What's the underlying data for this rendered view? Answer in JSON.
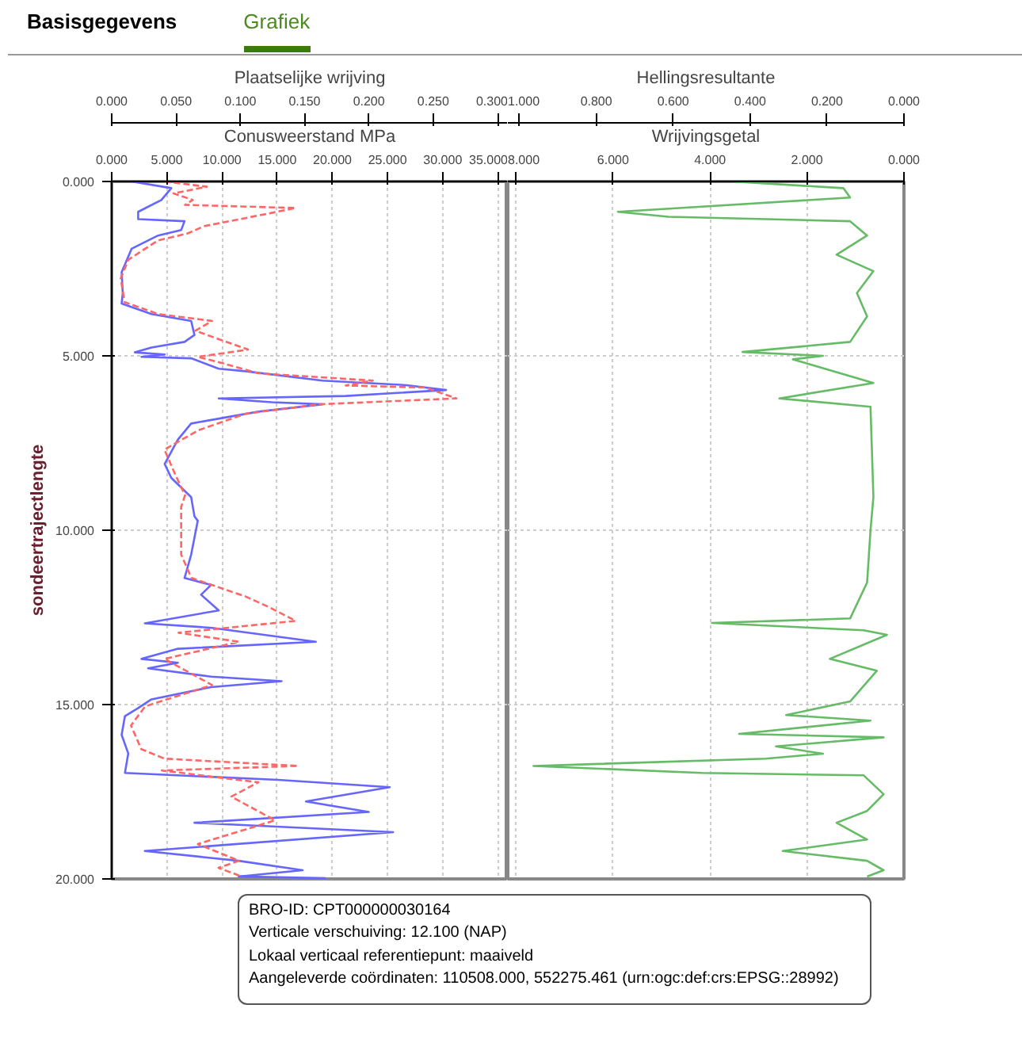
{
  "chart_data": [
    {
      "type": "line",
      "xlabel": "Conusweerstand MPa",
      "x2label": "Plaatselijke wrijving",
      "ylabel": "sondeertrajectlengte",
      "annotations": [
        "Basisgegevens",
        "Grafiek",
        "BRO-ID: CPT000000030164",
        "Verticale verschuiving: 12.100 (NAP)",
        "Lokaal verticaal referentiepunt: maaiveld",
        "Aangeleverde coördinaten: 110508.000, 552275.461 (urn:ogc:def:crs:EPSG::28992)"
      ],
      "xlim": [
        0,
        35.9
      ],
      "xticks": [
        {
          "value": 0,
          "label": "0.000"
        },
        {
          "value": 5,
          "label": "5.000"
        },
        {
          "value": 10,
          "label": "10.000"
        },
        {
          "value": 15,
          "label": "15.000"
        },
        {
          "value": 20,
          "label": "20.000"
        },
        {
          "value": 25,
          "label": "25.000"
        },
        {
          "value": 30,
          "label": "30.000"
        },
        {
          "value": 35,
          "label": "35.000"
        }
      ],
      "x2lim": [
        0,
        0.308
      ],
      "x2ticks": [
        {
          "value": 0,
          "label": "0.000"
        },
        {
          "value": 0.05,
          "label": "0.050"
        },
        {
          "value": 0.1,
          "label": "0.100"
        },
        {
          "value": 0.15,
          "label": "0.150"
        },
        {
          "value": 0.2,
          "label": "0.200"
        },
        {
          "value": 0.25,
          "label": "0.250"
        },
        {
          "value": 0.3,
          "label": "0.300"
        }
      ],
      "ylim": [
        20,
        0
      ],
      "yticks": [
        {
          "value": 0,
          "label": "0.000"
        },
        {
          "value": 5,
          "label": "5.000"
        },
        {
          "value": 10,
          "label": "10.000"
        },
        {
          "value": 15,
          "label": "15.000"
        },
        {
          "value": 20,
          "label": "20.000"
        }
      ],
      "grid": true,
      "series": [
        {
          "color": "#6666ff",
          "line_style": "solid",
          "x": [
            1.8,
            5.4,
            4.5,
            2.4,
            2.4,
            6.6,
            6.3,
            4.2,
            1.8,
            0.9,
            1.0,
            0.9,
            3.6,
            7.2,
            7.5,
            6.6,
            3.6,
            2.1,
            4.8,
            2.7,
            7.2,
            9.7,
            12.1,
            19.1,
            26.7,
            30.3,
            21.2,
            9.7,
            14.5,
            19.1,
            13.3,
            7.2,
            6.0,
            4.8,
            5.4,
            7.2,
            7.5,
            7.8,
            7.2,
            6.6,
            9.0,
            8.1,
            9.7,
            3.0,
            9.1,
            18.5,
            6.0,
            2.7,
            6.0,
            3.3,
            9.0,
            15.4,
            9.0,
            3.6,
            2.4,
            1.2,
            0.9,
            1.5,
            1.2,
            15.1,
            25.2,
            17.6,
            23.3,
            7.5,
            25.5,
            3.0,
            11.5,
            17.3,
            11.5,
            19.4
          ],
          "values": [
            0.0,
            0.19,
            0.53,
            0.87,
            1.08,
            1.14,
            1.39,
            1.55,
            1.93,
            2.6,
            3.2,
            3.5,
            3.8,
            4.0,
            4.4,
            4.6,
            4.76,
            4.9,
            4.96,
            5.03,
            5.07,
            5.37,
            5.44,
            5.71,
            5.84,
            5.98,
            6.15,
            6.22,
            6.33,
            6.39,
            6.6,
            6.94,
            7.4,
            8.1,
            8.5,
            9.05,
            9.6,
            9.73,
            10.7,
            11.37,
            11.57,
            11.85,
            12.3,
            12.67,
            12.8,
            13.2,
            13.4,
            13.69,
            13.8,
            13.96,
            14.2,
            14.33,
            14.5,
            14.85,
            15.1,
            15.33,
            15.87,
            16.4,
            16.96,
            17.16,
            17.37,
            17.78,
            18.08,
            18.39,
            18.66,
            19.2,
            19.48,
            19.75,
            19.93,
            19.98
          ]
        },
        {
          "axis": "x2",
          "color": "#ff6666",
          "line_style": "dashed",
          "x": [
            0.041,
            0.074,
            0.048,
            0.063,
            0.057,
            0.143,
            0.119,
            0.072,
            0.059,
            0.036,
            0.013,
            0.007,
            0.01,
            0.036,
            0.078,
            0.065,
            0.106,
            0.067,
            0.088,
            0.114,
            0.203,
            0.182,
            0.244,
            0.268,
            0.161,
            0.104,
            0.067,
            0.041,
            0.049,
            0.057,
            0.054,
            0.054,
            0.062,
            0.104,
            0.122,
            0.143,
            0.052,
            0.099,
            0.041,
            0.078,
            0.026,
            0.015,
            0.023,
            0.041,
            0.145,
            0.039,
            0.114,
            0.093,
            0.127,
            0.067,
            0.099,
            0.083,
            0.101
          ],
          "values": [
            0.0,
            0.15,
            0.34,
            0.53,
            0.67,
            0.76,
            0.94,
            1.28,
            1.49,
            1.69,
            2.24,
            2.78,
            3.46,
            3.8,
            4.0,
            4.28,
            4.82,
            5.03,
            5.23,
            5.5,
            5.71,
            5.85,
            5.91,
            6.22,
            6.39,
            6.66,
            7.14,
            7.69,
            8.37,
            9.0,
            9.33,
            10.7,
            11.37,
            11.9,
            12.2,
            12.6,
            12.94,
            13.2,
            13.69,
            14.44,
            15.05,
            15.6,
            16.28,
            16.55,
            16.76,
            16.89,
            17.23,
            17.64,
            18.32,
            19.0,
            19.48,
            19.68,
            19.93
          ]
        }
      ]
    },
    {
      "type": "line",
      "xlabel": "Wrijvingsgetal",
      "x2label": "Hellingsresultante",
      "xlim": [
        8.17,
        0
      ],
      "xticks": [
        {
          "value": 8,
          "label": "8.000"
        },
        {
          "value": 6,
          "label": "6.000"
        },
        {
          "value": 4,
          "label": "4.000"
        },
        {
          "value": 2,
          "label": "2.000"
        },
        {
          "value": 0,
          "label": "0.000"
        }
      ],
      "x2lim": [
        1.03,
        0
      ],
      "x2ticks": [
        {
          "value": 1,
          "label": "1.000"
        },
        {
          "value": 0.8,
          "label": "0.800"
        },
        {
          "value": 0.6,
          "label": "0.600"
        },
        {
          "value": 0.4,
          "label": "0.400"
        },
        {
          "value": 0.2,
          "label": "0.200"
        },
        {
          "value": 0,
          "label": "0.000"
        }
      ],
      "ylim": [
        20,
        0
      ],
      "tick_labels": "x",
      "grid": true,
      "series": [
        {
          "color": "#66bb66",
          "line_style": "solid",
          "x": [
            3.54,
            1.25,
            1.11,
            5.9,
            4.86,
            1.11,
            0.76,
            1.39,
            0.63,
            0.97,
            0.76,
            1.11,
            3.33,
            1.67,
            2.29,
            0.63,
            2.57,
            0.69,
            0.63,
            0.69,
            0.76,
            1.11,
            3.96,
            0.83,
            0.35,
            1.53,
            0.56,
            1.11,
            2.43,
            0.69,
            3.4,
            0.42,
            2.64,
            1.67,
            2.85,
            7.64,
            4.17,
            0.83,
            0.42,
            0.76,
            1.39,
            0.76,
            2.5,
            0.76,
            0.42,
            0.76
          ],
          "values": [
            0.0,
            0.19,
            0.46,
            0.87,
            1.01,
            1.14,
            1.55,
            2.1,
            2.57,
            3.2,
            3.87,
            4.6,
            4.89,
            5.0,
            5.1,
            5.78,
            6.22,
            6.46,
            9.05,
            10.0,
            11.5,
            12.53,
            12.66,
            12.87,
            13.0,
            13.69,
            14.03,
            14.91,
            15.3,
            15.46,
            15.84,
            15.94,
            16.2,
            16.41,
            16.55,
            16.76,
            16.96,
            17.03,
            17.57,
            18.05,
            18.39,
            18.87,
            19.2,
            19.48,
            19.75,
            19.93
          ]
        }
      ]
    }
  ]
}
